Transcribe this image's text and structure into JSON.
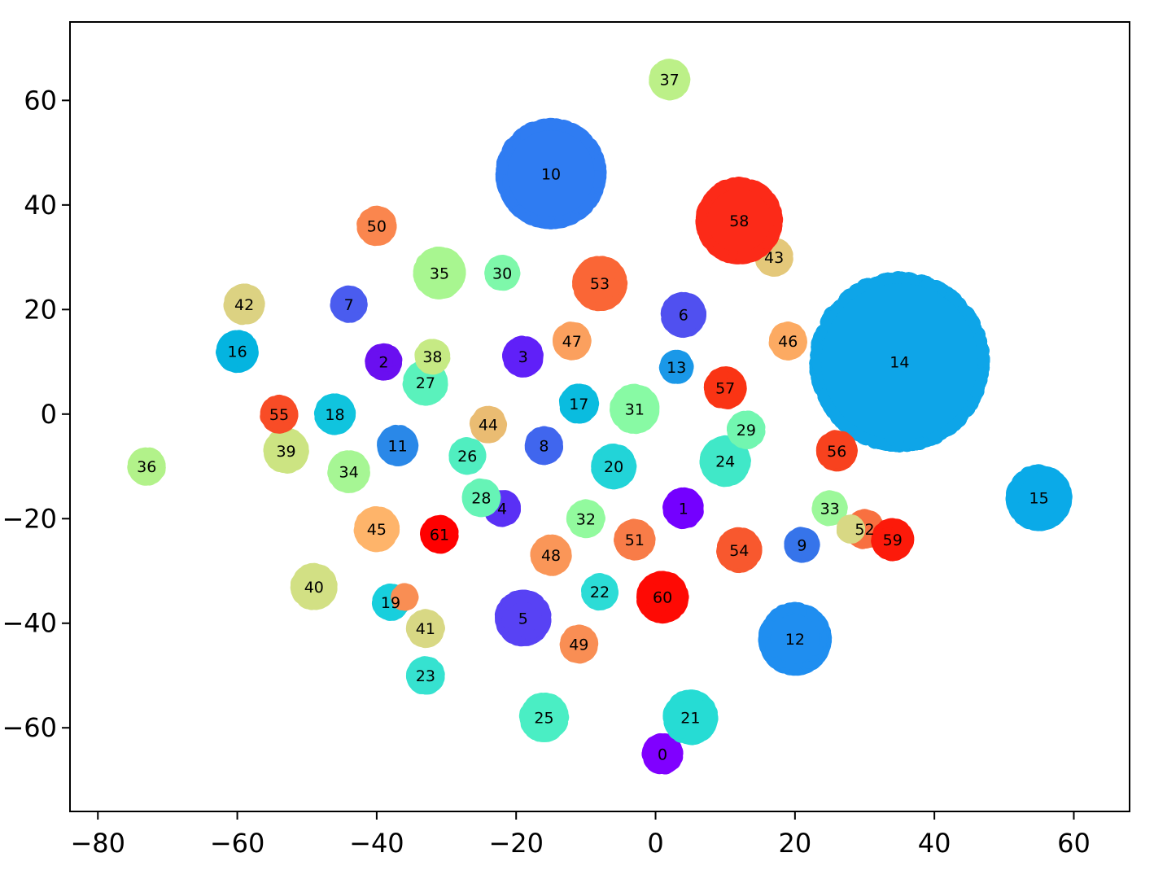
{
  "chart_data": {
    "type": "scatter",
    "title": "",
    "xlabel": "",
    "ylabel": "",
    "xlim": [
      -84,
      68
    ],
    "ylim": [
      -76,
      75
    ],
    "xticks": [
      -80,
      -60,
      -40,
      -20,
      0,
      20,
      40,
      60
    ],
    "yticks": [
      -60,
      -40,
      -20,
      0,
      20,
      40,
      60
    ],
    "legend": "none",
    "grid": false,
    "clusters": [
      {
        "label": "0",
        "x": 1,
        "y": -65,
        "r": 2.5,
        "color": "#8000ff"
      },
      {
        "label": "1",
        "x": 4,
        "y": -18,
        "r": 2.5,
        "color": "#7400ff"
      },
      {
        "label": "2",
        "x": -39,
        "y": 10,
        "r": 2.2,
        "color": "#6a0ff0"
      },
      {
        "label": "3",
        "x": -19,
        "y": 11,
        "r": 2.5,
        "color": "#6020f8"
      },
      {
        "label": "4",
        "x": -22,
        "y": -18,
        "r": 2.2,
        "color": "#5a30f5"
      },
      {
        "label": "5",
        "x": -19,
        "y": -39,
        "r": 3.6,
        "color": "#5842f4"
      },
      {
        "label": "6",
        "x": 4,
        "y": 19,
        "r": 2.8,
        "color": "#5050f0"
      },
      {
        "label": "7",
        "x": -44,
        "y": 21,
        "r": 2.2,
        "color": "#4a5cef"
      },
      {
        "label": "8",
        "x": -16,
        "y": -6,
        "r": 2.3,
        "color": "#4066ee"
      },
      {
        "label": "9",
        "x": 21,
        "y": -25,
        "r": 2.1,
        "color": "#3674ea"
      },
      {
        "label": "10",
        "x": -15,
        "y": 46,
        "r": 7.5,
        "color": "#2f7cf2"
      },
      {
        "label": "11",
        "x": -37,
        "y": -6,
        "r": 2.5,
        "color": "#2a88e8"
      },
      {
        "label": "12",
        "x": 20,
        "y": -43,
        "r": 4.8,
        "color": "#1f8ef0"
      },
      {
        "label": "13",
        "x": 3,
        "y": 9,
        "r": 2.0,
        "color": "#1a98e8"
      },
      {
        "label": "14",
        "x": 35,
        "y": 10,
        "r": 12.5,
        "color": "#0ea5e8"
      },
      {
        "label": "15",
        "x": 55,
        "y": -16,
        "r": 4.3,
        "color": "#0aaae8"
      },
      {
        "label": "16",
        "x": -60,
        "y": 12,
        "r": 2.6,
        "color": "#04b4e0"
      },
      {
        "label": "17",
        "x": -11,
        "y": 2,
        "r": 2.4,
        "color": "#0abcdf"
      },
      {
        "label": "18",
        "x": -46,
        "y": 0,
        "r": 2.5,
        "color": "#10c4de"
      },
      {
        "label": "19",
        "x": -38,
        "y": -36,
        "r": 2.2,
        "color": "#18cfdd"
      },
      {
        "label": "20",
        "x": -6,
        "y": -10,
        "r": 2.8,
        "color": "#22d4d8"
      },
      {
        "label": "21",
        "x": 5,
        "y": -58,
        "r": 3.5,
        "color": "#26dcd4"
      },
      {
        "label": "22",
        "x": -8,
        "y": -34,
        "r": 2.2,
        "color": "#2cdcd6"
      },
      {
        "label": "23",
        "x": -33,
        "y": -50,
        "r": 2.3,
        "color": "#36e2d0"
      },
      {
        "label": "24",
        "x": 10,
        "y": -9,
        "r": 3.2,
        "color": "#40e8c8"
      },
      {
        "label": "25",
        "x": -16,
        "y": -58,
        "r": 3.1,
        "color": "#4aeec4"
      },
      {
        "label": "26",
        "x": -27,
        "y": -8,
        "r": 2.2,
        "color": "#50eec0"
      },
      {
        "label": "27",
        "x": -33,
        "y": 6,
        "r": 2.8,
        "color": "#5af2bc"
      },
      {
        "label": "28",
        "x": -25,
        "y": -16,
        "r": 2.3,
        "color": "#66f4b6"
      },
      {
        "label": "29",
        "x": 13,
        "y": -3,
        "r": 2.3,
        "color": "#72f6b0"
      },
      {
        "label": "30",
        "x": -22,
        "y": 27,
        "r": 2.1,
        "color": "#7ef8aa"
      },
      {
        "label": "31",
        "x": -3,
        "y": 1,
        "r": 3.1,
        "color": "#88faa4"
      },
      {
        "label": "32",
        "x": -10,
        "y": -20,
        "r": 2.3,
        "color": "#92fa9e"
      },
      {
        "label": "33",
        "x": 25,
        "y": -18,
        "r": 2.1,
        "color": "#9cf89a"
      },
      {
        "label": "34",
        "x": -44,
        "y": -11,
        "r": 2.6,
        "color": "#a6f694"
      },
      {
        "label": "35",
        "x": -31,
        "y": 27,
        "r": 3.3,
        "color": "#a8f690"
      },
      {
        "label": "36",
        "x": -73,
        "y": -10,
        "r": 2.3,
        "color": "#b2f28a"
      },
      {
        "label": "37",
        "x": 2,
        "y": 64,
        "r": 2.5,
        "color": "#bcf088"
      },
      {
        "label": "38",
        "x": -32,
        "y": 11,
        "r": 2.1,
        "color": "#c6ea84"
      },
      {
        "label": "39",
        "x": -53,
        "y": -7,
        "r": 2.8,
        "color": "#cce482"
      },
      {
        "label": "40",
        "x": -49,
        "y": -33,
        "r": 2.9,
        "color": "#d2e084"
      },
      {
        "label": "41",
        "x": -33,
        "y": -41,
        "r": 2.3,
        "color": "#d8d884"
      },
      {
        "label": "42",
        "x": -59,
        "y": 21,
        "r": 2.5,
        "color": "#dcd282"
      },
      {
        "label": "43",
        "x": 17,
        "y": 30,
        "r": 2.3,
        "color": "#e4c87a"
      },
      {
        "label": "44",
        "x": -24,
        "y": -2,
        "r": 2.2,
        "color": "#eabc72"
      },
      {
        "label": "45",
        "x": -40,
        "y": -22,
        "r": 2.8,
        "color": "#feb46a"
      },
      {
        "label": "46",
        "x": 19,
        "y": 14,
        "r": 2.3,
        "color": "#fcaa62"
      },
      {
        "label": "47",
        "x": -12,
        "y": 14,
        "r": 2.3,
        "color": "#fba05e"
      },
      {
        "label": "48",
        "x": -15,
        "y": -27,
        "r": 2.5,
        "color": "#fa9658"
      },
      {
        "label": "49",
        "x": -11,
        "y": -44,
        "r": 2.3,
        "color": "#f98e54"
      },
      {
        "label": "50",
        "x": -40,
        "y": 36,
        "r": 2.4,
        "color": "#fa864e"
      },
      {
        "label": "51",
        "x": -3,
        "y": -24,
        "r": 2.5,
        "color": "#f87c48"
      },
      {
        "label": "52",
        "x": 30,
        "y": -22,
        "r": 2.4,
        "color": "#f87040"
      },
      {
        "label": "53",
        "x": -8,
        "y": 25,
        "r": 3.5,
        "color": "#fa6636"
      },
      {
        "label": "54",
        "x": 12,
        "y": -26,
        "r": 2.8,
        "color": "#f8582e"
      },
      {
        "label": "55",
        "x": -54,
        "y": 0,
        "r": 2.3,
        "color": "#f84c26"
      },
      {
        "label": "56",
        "x": 26,
        "y": -7,
        "r": 2.5,
        "color": "#f8421e"
      },
      {
        "label": "57",
        "x": 10,
        "y": 5,
        "r": 2.6,
        "color": "#fa3414"
      },
      {
        "label": "58",
        "x": 12,
        "y": 37,
        "r": 5.8,
        "color": "#fc2a18"
      },
      {
        "label": "59",
        "x": 34,
        "y": -24,
        "r": 2.6,
        "color": "#fc1a0a"
      },
      {
        "label": "60",
        "x": 1,
        "y": -35,
        "r": 3.3,
        "color": "#fe0a04"
      },
      {
        "label": "61",
        "x": -31,
        "y": -23,
        "r": 2.3,
        "color": "#ff0000"
      }
    ],
    "extra_points": [
      {
        "x": -36,
        "y": -35,
        "r": 1.5,
        "color": "#f98e54"
      },
      {
        "x": 28,
        "y": -22,
        "r": 1.6,
        "color": "#d8d884"
      }
    ]
  }
}
